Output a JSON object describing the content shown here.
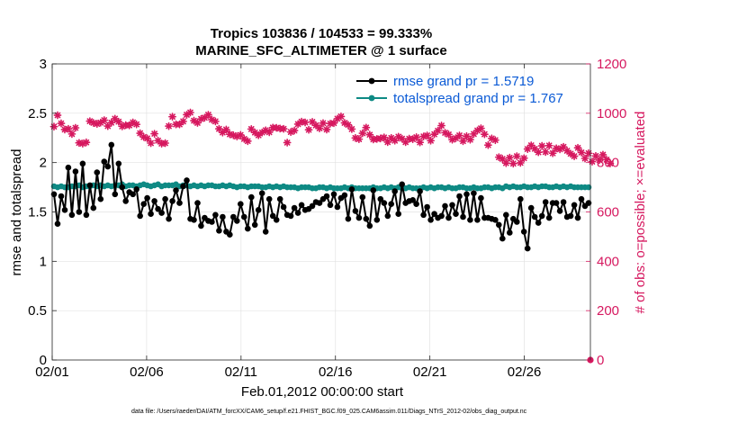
{
  "chart_data": {
    "type": "line",
    "title": "Tropics 103836 / 104533 = 99.333%",
    "subtitle": "MARINE_SFC_ALTIMETER @ 1 surface",
    "xlabel": "Feb.01,2012 00:00:00 start",
    "ylabel": "rmse and totalspread",
    "y2label": "# of obs: o=possible; ×=evaluated",
    "x_ticks": [
      "02/01",
      "02/06",
      "02/11",
      "02/16",
      "02/21",
      "02/26"
    ],
    "x_range_days": [
      0,
      28.5
    ],
    "ylim": [
      0,
      3
    ],
    "y_ticks": [
      "0",
      "0.5",
      "1",
      "1.5",
      "2",
      "2.5",
      "3"
    ],
    "y2lim": [
      0,
      1200
    ],
    "y2_ticks": [
      "0",
      "200",
      "400",
      "600",
      "800",
      "1000",
      "1200"
    ],
    "grid": true,
    "legend_position": "top-right",
    "colors": {
      "rmse": "#000000",
      "spread": "#0e8a84",
      "obs": "#d6185f",
      "legend_text": "#0a5ad6"
    },
    "series": [
      {
        "name": "rmse grand pr = 1.5719",
        "axis": "left",
        "marker": "dot-line",
        "values": [
          1.68,
          1.38,
          1.66,
          1.52,
          1.95,
          1.47,
          1.91,
          1.5,
          1.99,
          1.47,
          1.77,
          1.54,
          1.9,
          1.63,
          2.01,
          1.96,
          2.18,
          1.68,
          1.99,
          1.75,
          1.61,
          1.7,
          1.68,
          1.73,
          1.46,
          1.58,
          1.64,
          1.48,
          1.61,
          1.53,
          1.49,
          1.63,
          1.43,
          1.61,
          1.72,
          1.59,
          1.76,
          1.82,
          1.43,
          1.42,
          1.59,
          1.36,
          1.44,
          1.41,
          1.4,
          1.47,
          1.31,
          1.45,
          1.3,
          1.27,
          1.45,
          1.41,
          1.58,
          1.45,
          1.33,
          1.65,
          1.37,
          1.52,
          1.69,
          1.3,
          1.63,
          1.46,
          1.42,
          1.63,
          1.55,
          1.47,
          1.46,
          1.54,
          1.49,
          1.57,
          1.52,
          1.53,
          1.56,
          1.6,
          1.59,
          1.63,
          1.66,
          1.57,
          1.68,
          1.55,
          1.64,
          1.67,
          1.43,
          1.73,
          1.51,
          1.44,
          1.65,
          1.43,
          1.36,
          1.72,
          1.42,
          1.63,
          1.59,
          1.46,
          1.58,
          1.71,
          1.48,
          1.78,
          1.59,
          1.61,
          1.62,
          1.58,
          1.71,
          1.47,
          1.55,
          1.42,
          1.48,
          1.44,
          1.46,
          1.56,
          1.44,
          1.57,
          1.48,
          1.66,
          1.45,
          1.68,
          1.42,
          1.69,
          1.42,
          1.64,
          1.44,
          1.44,
          1.43,
          1.42,
          1.37,
          1.23,
          1.47,
          1.29,
          1.43,
          1.4,
          1.63,
          1.3,
          1.13,
          1.54,
          1.45,
          1.39,
          1.46,
          1.6,
          1.44,
          1.59,
          1.59,
          1.51,
          1.6,
          1.45,
          1.46,
          1.57,
          1.44,
          1.63,
          1.56,
          1.59
        ]
      },
      {
        "name": "totalspread grand pr = 1.767",
        "axis": "left",
        "marker": "dot-line",
        "values": [
          1.76,
          1.75,
          1.76,
          1.75,
          1.75,
          1.76,
          1.76,
          1.77,
          1.75,
          1.76,
          1.76,
          1.77,
          1.76,
          1.77,
          1.76,
          1.77,
          1.76,
          1.77,
          1.77,
          1.78,
          1.76,
          1.77,
          1.77,
          1.76,
          1.77,
          1.78,
          1.77,
          1.76,
          1.77,
          1.78,
          1.76,
          1.77,
          1.77,
          1.77,
          1.78,
          1.76,
          1.77,
          1.77,
          1.76,
          1.77,
          1.76,
          1.77,
          1.76,
          1.77,
          1.77,
          1.76,
          1.76,
          1.77,
          1.76,
          1.77,
          1.76,
          1.75,
          1.76,
          1.76,
          1.75,
          1.76,
          1.76,
          1.76,
          1.75,
          1.75,
          1.76,
          1.75,
          1.76,
          1.75,
          1.76,
          1.75,
          1.75,
          1.75,
          1.74,
          1.75,
          1.75,
          1.75,
          1.74,
          1.74,
          1.75,
          1.75,
          1.74,
          1.75,
          1.74,
          1.74,
          1.74,
          1.75,
          1.74,
          1.75,
          1.74,
          1.74,
          1.74,
          1.74,
          1.74,
          1.75,
          1.74,
          1.74,
          1.75,
          1.74,
          1.75,
          1.74,
          1.75,
          1.74,
          1.74,
          1.75,
          1.74,
          1.74,
          1.74,
          1.75,
          1.74,
          1.75,
          1.74,
          1.75,
          1.75,
          1.74,
          1.75,
          1.74,
          1.74,
          1.75,
          1.75,
          1.74,
          1.74,
          1.75,
          1.74,
          1.74,
          1.75,
          1.75,
          1.74,
          1.75,
          1.75,
          1.74,
          1.76,
          1.75,
          1.76,
          1.75,
          1.75,
          1.76,
          1.75,
          1.75,
          1.76,
          1.75,
          1.76,
          1.76,
          1.75,
          1.75,
          1.76,
          1.75,
          1.76,
          1.75,
          1.76,
          1.75,
          1.75,
          1.75,
          1.75,
          1.75
        ]
      },
      {
        "name": "# of obs (evaluated)",
        "axis": "right",
        "marker": "asterisk",
        "values": [
          946,
          992,
          959,
          934,
          937,
          916,
          941,
          880,
          877,
          882,
          968,
          961,
          957,
          962,
          972,
          948,
          962,
          978,
          966,
          947,
          952,
          951,
          963,
          955,
          919,
          904,
          898,
          879,
          917,
          889,
          877,
          879,
          948,
          986,
          955,
          955,
          967,
          994,
          1003,
          970,
          961,
          977,
          982,
          994,
          974,
          967,
          937,
          922,
          934,
          915,
          911,
          906,
          912,
          896,
          887,
          936,
          922,
          911,
          922,
          931,
          923,
          942,
          941,
          938,
          937,
          881,
          924,
          930,
          956,
          966,
          963,
          933,
          965,
          951,
          939,
          960,
          934,
          958,
          960,
          978,
          987,
          961,
          953,
          936,
          900,
          895,
          919,
          942,
          913,
          894,
          896,
          898,
          902,
          883,
          900,
          889,
          905,
          897,
          883,
          897,
          895,
          903,
          882,
          906,
          910,
          889,
          915,
          929,
          950,
          921,
          914,
          893,
          899,
          910,
          887,
          907,
          893,
          916,
          930,
          939,
          915,
          871,
          898,
          891,
          822,
          815,
          798,
          820,
          796,
          826,
          799,
          818,
          855,
          870,
          856,
          842,
          868,
          843,
          869,
          838,
          858,
          854,
          864,
          848,
          836,
          826,
          860,
          841,
          817,
          838,
          804,
          827,
          810,
          832,
          812,
          797
        ]
      },
      {
        "name": "# of obs (possible)",
        "axis": "right",
        "marker": "circle",
        "values": [
          0
        ]
      }
    ]
  },
  "footer": "data file: /Users/raeder/DAI/ATM_forcXX/CAM6_setup/f.e21.FHIST_BGC.f09_025.CAM6assim.011/Diags_NTrS_2012-02/obs_diag_output.nc"
}
